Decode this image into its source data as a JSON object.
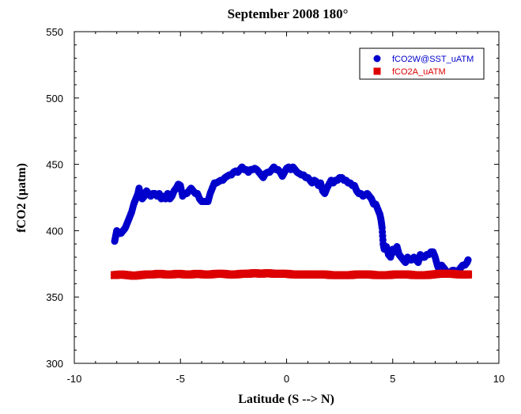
{
  "chart_data": {
    "type": "scatter",
    "title": "September 2008 180°",
    "xlabel": "Latitude (S --> N)",
    "ylabel": "fCO2 (µatm)",
    "xlim": [
      -10,
      10
    ],
    "ylim": [
      300,
      550
    ],
    "x_ticks": [
      -10,
      -5,
      0,
      5,
      10
    ],
    "y_ticks": [
      300,
      350,
      400,
      450,
      500,
      550
    ],
    "grid": false,
    "legend_position": "top-right",
    "series": [
      {
        "name": "fCO2W@SST_uATM",
        "color": "#0000cc",
        "marker": "circle",
        "points": [
          [
            -8.1,
            392
          ],
          [
            -8.05,
            396
          ],
          [
            -8.0,
            400
          ],
          [
            -7.9,
            398
          ],
          [
            -7.8,
            398
          ],
          [
            -7.7,
            400
          ],
          [
            -7.6,
            402
          ],
          [
            -7.5,
            406
          ],
          [
            -7.4,
            410
          ],
          [
            -7.3,
            414
          ],
          [
            -7.2,
            420
          ],
          [
            -7.1,
            424
          ],
          [
            -7.0,
            428
          ],
          [
            -6.95,
            432
          ],
          [
            -6.9,
            428
          ],
          [
            -6.8,
            424
          ],
          [
            -6.7,
            426
          ],
          [
            -6.6,
            430
          ],
          [
            -6.5,
            428
          ],
          [
            -6.4,
            426
          ],
          [
            -6.3,
            428
          ],
          [
            -6.2,
            428
          ],
          [
            -6.1,
            426
          ],
          [
            -6.0,
            428
          ],
          [
            -5.9,
            424
          ],
          [
            -5.8,
            426
          ],
          [
            -5.7,
            424
          ],
          [
            -5.6,
            428
          ],
          [
            -5.5,
            424
          ],
          [
            -5.4,
            426
          ],
          [
            -5.3,
            430
          ],
          [
            -5.2,
            432
          ],
          [
            -5.1,
            435
          ],
          [
            -5.0,
            434
          ],
          [
            -4.9,
            426
          ],
          [
            -4.8,
            428
          ],
          [
            -4.7,
            428
          ],
          [
            -4.6,
            430
          ],
          [
            -4.5,
            432
          ],
          [
            -4.4,
            430
          ],
          [
            -4.3,
            428
          ],
          [
            -4.2,
            428
          ],
          [
            -4.1,
            424
          ],
          [
            -4.0,
            422
          ],
          [
            -3.9,
            422
          ],
          [
            -3.8,
            422
          ],
          [
            -3.7,
            422
          ],
          [
            -3.6,
            428
          ],
          [
            -3.5,
            432
          ],
          [
            -3.4,
            436
          ],
          [
            -3.3,
            436
          ],
          [
            -3.2,
            437
          ],
          [
            -3.1,
            438
          ],
          [
            -3.0,
            438
          ],
          [
            -2.9,
            440
          ],
          [
            -2.8,
            441
          ],
          [
            -2.7,
            442
          ],
          [
            -2.6,
            442
          ],
          [
            -2.5,
            444
          ],
          [
            -2.4,
            445
          ],
          [
            -2.3,
            444
          ],
          [
            -2.2,
            446
          ],
          [
            -2.1,
            448
          ],
          [
            -2.0,
            446
          ],
          [
            -1.9,
            446
          ],
          [
            -1.8,
            444
          ],
          [
            -1.7,
            446
          ],
          [
            -1.6,
            446
          ],
          [
            -1.5,
            447
          ],
          [
            -1.4,
            446
          ],
          [
            -1.3,
            444
          ],
          [
            -1.2,
            442
          ],
          [
            -1.1,
            440
          ],
          [
            -1.0,
            443
          ],
          [
            -0.9,
            444
          ],
          [
            -0.8,
            444
          ],
          [
            -0.7,
            446
          ],
          [
            -0.6,
            448
          ],
          [
            -0.5,
            446
          ],
          [
            -0.4,
            446
          ],
          [
            -0.3,
            444
          ],
          [
            -0.2,
            441
          ],
          [
            -0.1,
            444
          ],
          [
            0.0,
            447
          ],
          [
            0.1,
            448
          ],
          [
            0.2,
            446
          ],
          [
            0.3,
            448
          ],
          [
            0.4,
            446
          ],
          [
            0.5,
            444
          ],
          [
            0.6,
            443
          ],
          [
            0.7,
            442
          ],
          [
            0.8,
            442
          ],
          [
            0.9,
            440
          ],
          [
            1.0,
            440
          ],
          [
            1.1,
            438
          ],
          [
            1.2,
            436
          ],
          [
            1.3,
            438
          ],
          [
            1.4,
            437
          ],
          [
            1.5,
            434
          ],
          [
            1.6,
            436
          ],
          [
            1.7,
            430
          ],
          [
            1.8,
            428
          ],
          [
            1.9,
            432
          ],
          [
            2.0,
            435
          ],
          [
            2.1,
            438
          ],
          [
            2.2,
            436
          ],
          [
            2.3,
            438
          ],
          [
            2.4,
            438
          ],
          [
            2.5,
            440
          ],
          [
            2.6,
            440
          ],
          [
            2.7,
            438
          ],
          [
            2.8,
            438
          ],
          [
            2.9,
            436
          ],
          [
            3.0,
            436
          ],
          [
            3.1,
            434
          ],
          [
            3.2,
            434
          ],
          [
            3.3,
            430
          ],
          [
            3.4,
            428
          ],
          [
            3.5,
            428
          ],
          [
            3.6,
            426
          ],
          [
            3.7,
            427
          ],
          [
            3.8,
            428
          ],
          [
            3.9,
            426
          ],
          [
            4.0,
            424
          ],
          [
            4.1,
            420
          ],
          [
            4.2,
            420
          ],
          [
            4.3,
            416
          ],
          [
            4.4,
            412
          ],
          [
            4.45,
            408
          ],
          [
            4.5,
            402
          ],
          [
            4.55,
            390
          ],
          [
            4.6,
            386
          ],
          [
            4.7,
            388
          ],
          [
            4.8,
            382
          ],
          [
            4.9,
            380
          ],
          [
            5.0,
            386
          ],
          [
            5.1,
            384
          ],
          [
            5.2,
            388
          ],
          [
            5.3,
            382
          ],
          [
            5.4,
            380
          ],
          [
            5.5,
            378
          ],
          [
            5.6,
            376
          ],
          [
            5.7,
            380
          ],
          [
            5.8,
            378
          ],
          [
            5.9,
            378
          ],
          [
            6.0,
            380
          ],
          [
            6.1,
            378
          ],
          [
            6.2,
            376
          ],
          [
            6.3,
            382
          ],
          [
            6.4,
            380
          ],
          [
            6.5,
            380
          ],
          [
            6.6,
            382
          ],
          [
            6.7,
            382
          ],
          [
            6.8,
            384
          ],
          [
            6.9,
            384
          ],
          [
            7.0,
            380
          ],
          [
            7.1,
            374
          ],
          [
            7.2,
            370
          ],
          [
            7.3,
            374
          ],
          [
            7.4,
            372
          ],
          [
            7.5,
            370
          ],
          [
            7.6,
            368
          ],
          [
            7.7,
            368
          ],
          [
            7.8,
            370
          ],
          [
            7.9,
            370
          ],
          [
            8.0,
            368
          ],
          [
            8.1,
            370
          ],
          [
            8.2,
            372
          ],
          [
            8.3,
            374
          ],
          [
            8.4,
            374
          ],
          [
            8.5,
            376
          ],
          [
            8.55,
            378
          ]
        ]
      },
      {
        "name": "fCO2A_uATM",
        "color": "#dd0000",
        "marker": "square",
        "points": [
          [
            -8.1,
            366.5
          ],
          [
            -7.8,
            367
          ],
          [
            -7.5,
            366.5
          ],
          [
            -7.2,
            366
          ],
          [
            -6.9,
            366.5
          ],
          [
            -6.6,
            367
          ],
          [
            -6.3,
            367
          ],
          [
            -6.0,
            367.5
          ],
          [
            -5.7,
            367
          ],
          [
            -5.4,
            367
          ],
          [
            -5.1,
            367.5
          ],
          [
            -4.8,
            367
          ],
          [
            -4.5,
            367
          ],
          [
            -4.2,
            367.5
          ],
          [
            -3.9,
            367
          ],
          [
            -3.6,
            367
          ],
          [
            -3.3,
            367.5
          ],
          [
            -3.0,
            367.5
          ],
          [
            -2.7,
            367
          ],
          [
            -2.4,
            367
          ],
          [
            -2.1,
            367.5
          ],
          [
            -1.8,
            367.5
          ],
          [
            -1.5,
            368
          ],
          [
            -1.2,
            367.5
          ],
          [
            -0.9,
            368
          ],
          [
            -0.6,
            367.5
          ],
          [
            -0.3,
            367.5
          ],
          [
            0.0,
            367.5
          ],
          [
            0.3,
            367
          ],
          [
            0.6,
            367
          ],
          [
            0.9,
            367
          ],
          [
            1.2,
            367
          ],
          [
            1.5,
            367
          ],
          [
            1.8,
            367
          ],
          [
            2.1,
            366.5
          ],
          [
            2.4,
            366.5
          ],
          [
            2.7,
            366.5
          ],
          [
            3.0,
            366.5
          ],
          [
            3.3,
            367
          ],
          [
            3.6,
            367
          ],
          [
            3.9,
            367
          ],
          [
            4.2,
            366.5
          ],
          [
            4.5,
            366.5
          ],
          [
            4.8,
            366.5
          ],
          [
            5.1,
            367
          ],
          [
            5.4,
            367
          ],
          [
            5.7,
            367
          ],
          [
            6.0,
            366.5
          ],
          [
            6.3,
            366.5
          ],
          [
            6.6,
            366.5
          ],
          [
            6.9,
            367
          ],
          [
            7.2,
            367.5
          ],
          [
            7.5,
            367.5
          ],
          [
            7.8,
            367.5
          ],
          [
            8.1,
            367
          ],
          [
            8.4,
            367
          ],
          [
            8.55,
            367
          ]
        ]
      }
    ]
  }
}
